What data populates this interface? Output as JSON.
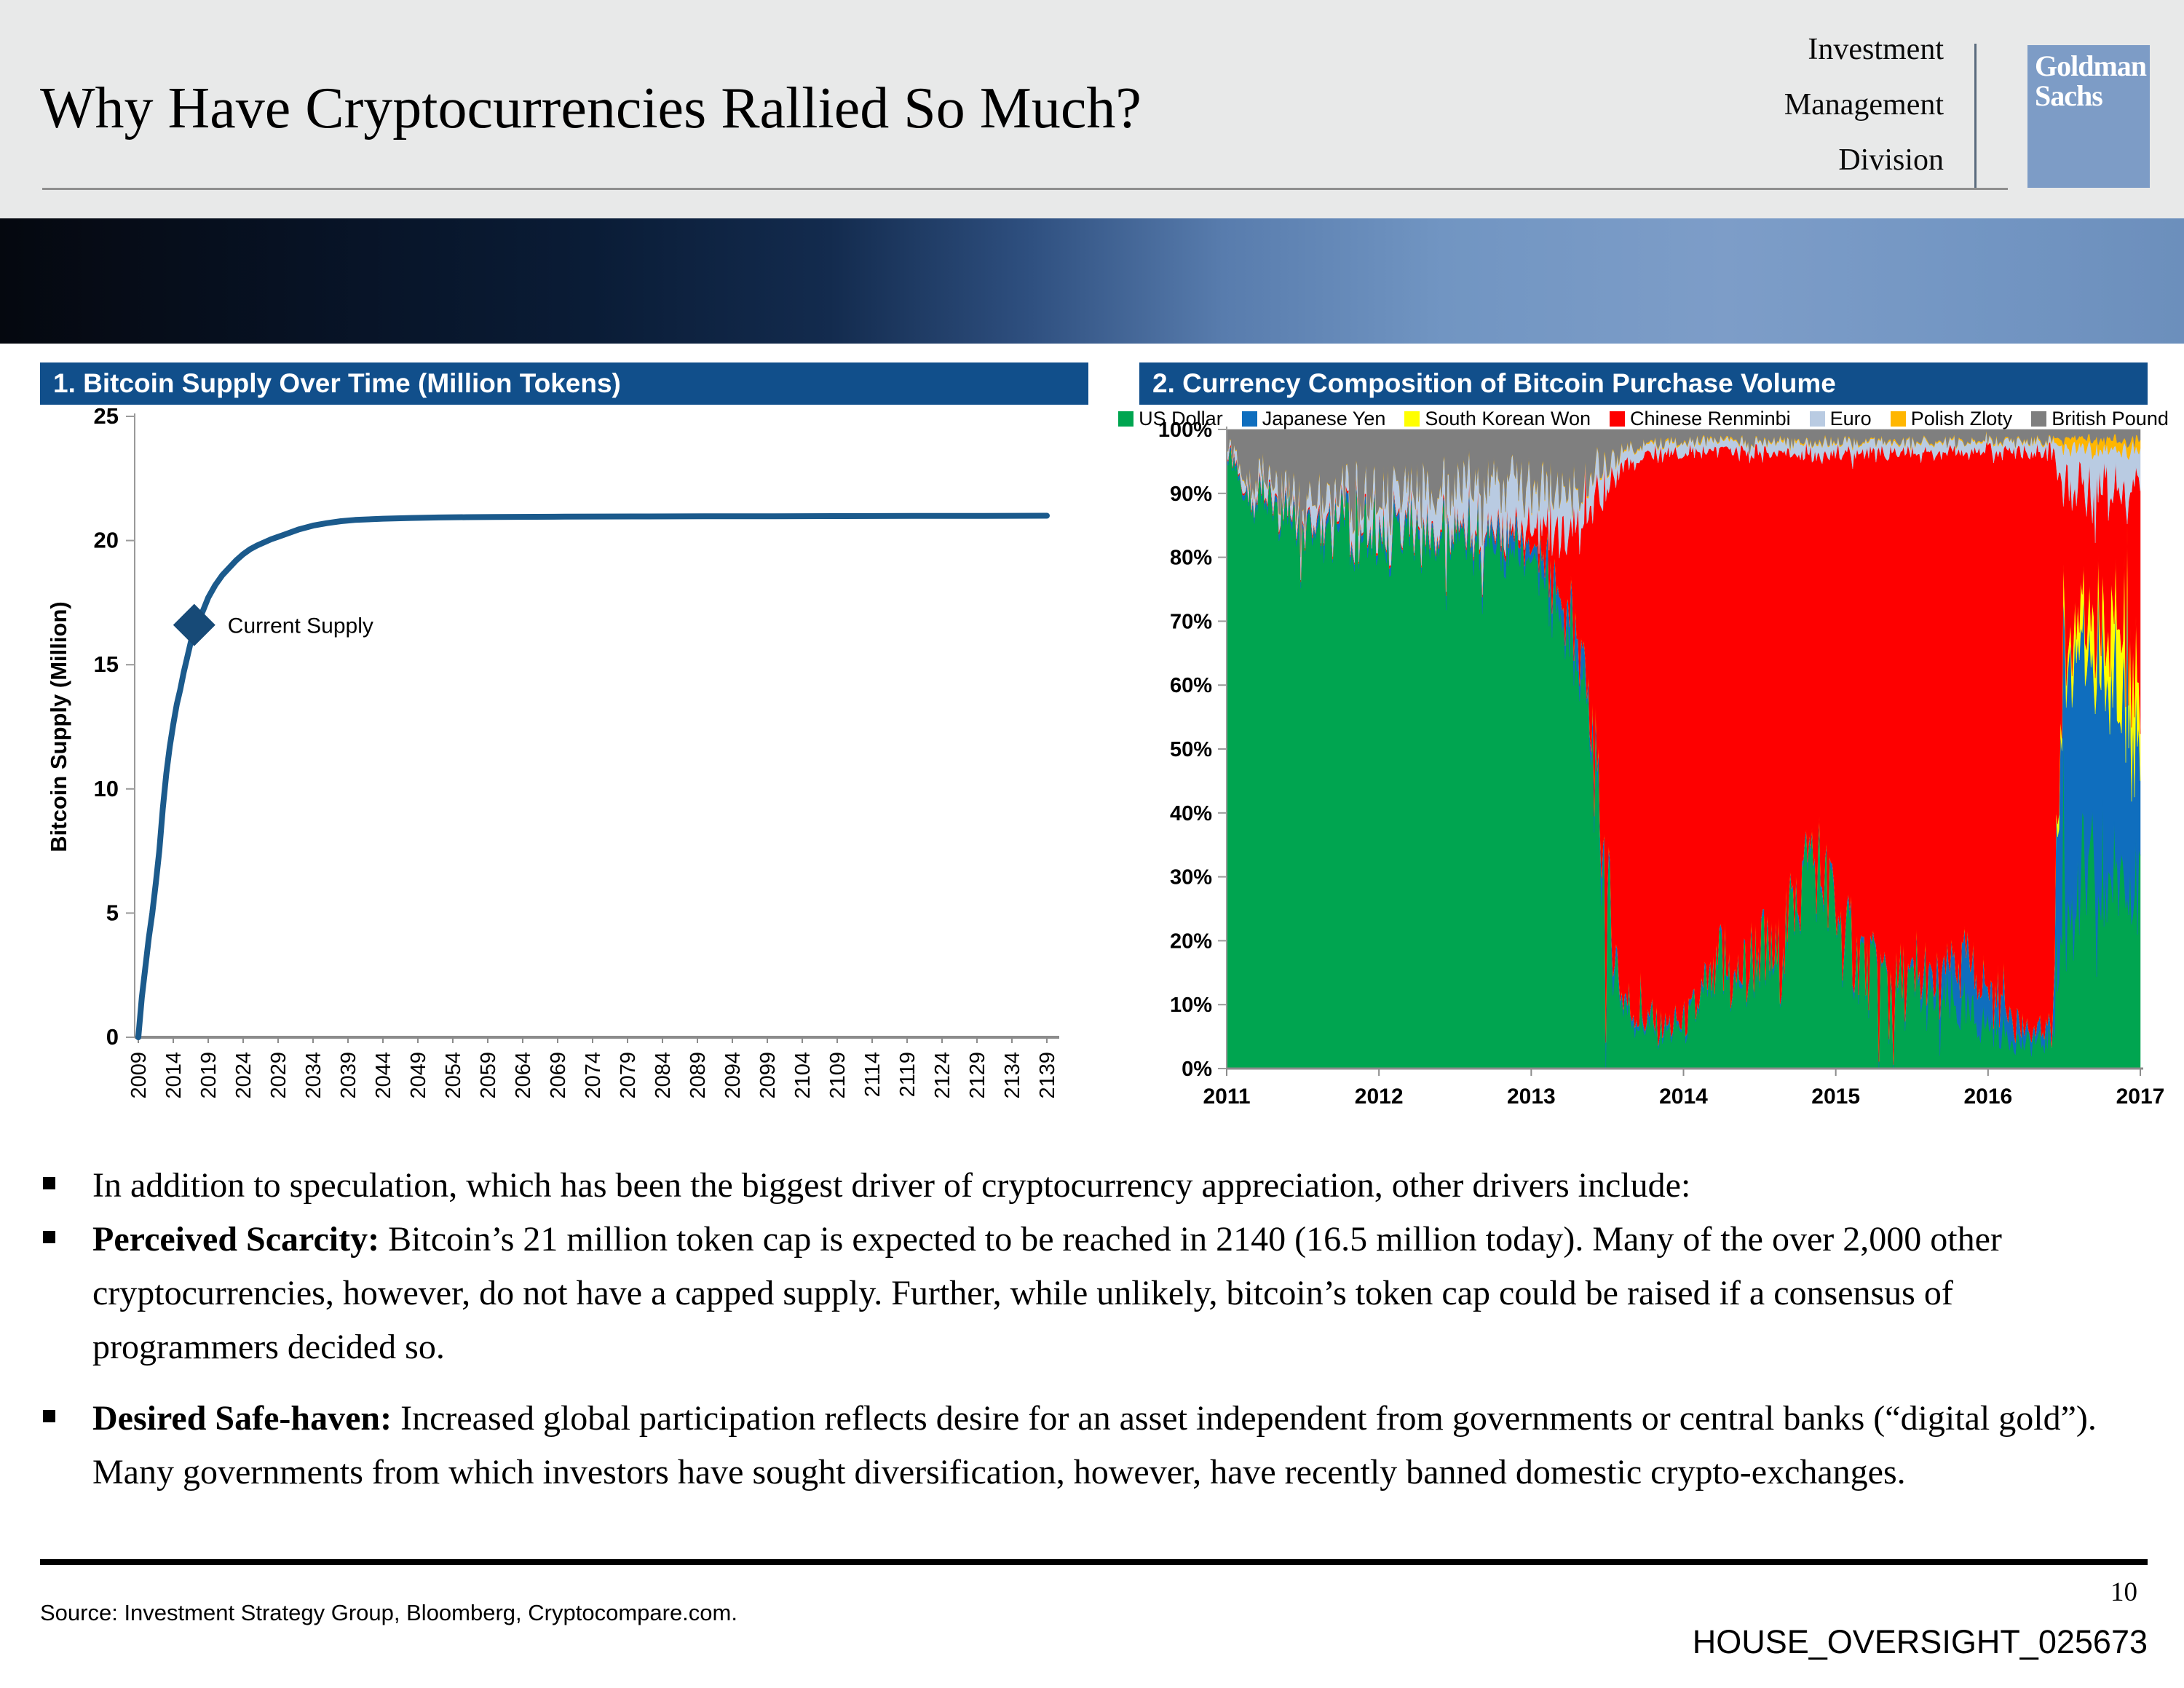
{
  "slide": {
    "title": "Why Have Cryptocurrencies Rallied So Much?",
    "division_lines": [
      "Investment",
      "Management",
      "Division"
    ],
    "logo_line1": "Goldman",
    "logo_line2": "Sachs",
    "page_number": "10",
    "doc_id": "HOUSE_OVERSIGHT_025673",
    "source": "Source: Investment Strategy Group, Bloomberg, Cryptocompare.com."
  },
  "bullets": [
    {
      "lead": "",
      "text": "In addition to speculation, which has been the biggest driver of cryptocurrency appreciation, other drivers include:"
    },
    {
      "lead": "Perceived Scarcity:",
      "text": " Bitcoin’s 21 million token cap is expected to be reached in 2140 (16.5 million today). Many of the over 2,000 other cryptocurrencies, however, do not have a capped supply. Further, while unlikely, bitcoin’s token cap could be raised if a consensus of programmers decided so."
    },
    {
      "lead": "Desired Safe-haven:",
      "text": " Increased global participation reflects desire for an asset independent from governments or central banks (“digital gold”). Many governments from which investors have sought diversification, however, have recently banned domestic crypto-exchanges."
    }
  ],
  "chart_data": [
    {
      "type": "line",
      "title": "1. Bitcoin Supply Over Time (Million Tokens)",
      "ylabel": "Bitcoin Supply (Million)",
      "xlabel": "",
      "ylim": [
        0,
        25
      ],
      "yticks": [
        0,
        5,
        10,
        15,
        20,
        25
      ],
      "xticks": [
        2009,
        2014,
        2019,
        2024,
        2029,
        2034,
        2039,
        2044,
        2049,
        2054,
        2059,
        2064,
        2069,
        2074,
        2079,
        2084,
        2089,
        2094,
        2099,
        2104,
        2109,
        2114,
        2119,
        2124,
        2129,
        2134,
        2139
      ],
      "line_color": "#1b5a8c",
      "marker_color": "#174a77",
      "grid": false,
      "series": [
        {
          "name": "Bitcoin Supply",
          "x": [
            2009,
            2009.5,
            2010,
            2010.5,
            2011,
            2011.5,
            2012,
            2012.5,
            2013,
            2013.5,
            2014,
            2014.5,
            2015,
            2015.5,
            2016,
            2016.5,
            2017,
            2017.5,
            2018,
            2019,
            2020,
            2021,
            2022,
            2023,
            2024,
            2025,
            2026,
            2028,
            2030,
            2032,
            2034,
            2036,
            2038,
            2040,
            2044,
            2048,
            2052,
            2056,
            2060,
            2070,
            2080,
            2090,
            2100,
            2110,
            2120,
            2130,
            2139
          ],
          "y": [
            0.0,
            1.6,
            2.8,
            4.0,
            5.0,
            6.2,
            7.5,
            9.2,
            10.6,
            11.7,
            12.6,
            13.4,
            14.0,
            14.7,
            15.3,
            15.9,
            16.4,
            16.7,
            17.0,
            17.7,
            18.2,
            18.6,
            18.9,
            19.2,
            19.45,
            19.65,
            19.8,
            20.05,
            20.25,
            20.45,
            20.6,
            20.7,
            20.78,
            20.83,
            20.88,
            20.91,
            20.93,
            20.94,
            20.95,
            20.96,
            20.97,
            20.975,
            20.98,
            20.985,
            20.99,
            20.995,
            21.0
          ]
        }
      ],
      "annotation": {
        "label": "Current Supply",
        "x": 2017,
        "y": 16.6
      }
    },
    {
      "type": "area",
      "title": "2. Currency Composition of Bitcoin Purchase Volume",
      "xlabel": "",
      "ylabel": "",
      "ylim": [
        0,
        100
      ],
      "yticks": [
        0,
        10,
        20,
        30,
        40,
        50,
        60,
        70,
        80,
        90,
        100
      ],
      "ytick_suffix": "%",
      "xticks": [
        2011,
        2012,
        2013,
        2014,
        2015,
        2016,
        2017
      ],
      "x_start_year": 2011,
      "x_step_months": 1,
      "legend_position": "top",
      "grid": false,
      "series": [
        {
          "name": "US Dollar",
          "color": "#00a550",
          "values": [
            96,
            92,
            89,
            91,
            86,
            88,
            84,
            86,
            84,
            86,
            83,
            85,
            84,
            82,
            85,
            83,
            81,
            84,
            82,
            84,
            81,
            83,
            80,
            82,
            78,
            76,
            74,
            69,
            58,
            46,
            24,
            12,
            8,
            7,
            6,
            6,
            7,
            9,
            12,
            16,
            13,
            15,
            19,
            16,
            22,
            28,
            35,
            30,
            25,
            20,
            17,
            15,
            14,
            13,
            12,
            11,
            10,
            10,
            9,
            8,
            7,
            6,
            5,
            4,
            4,
            5,
            25,
            28,
            30,
            28,
            30,
            32,
            28
          ]
        },
        {
          "name": "Japanese Yen",
          "color": "#0f6ebe",
          "values": [
            0.5,
            0.7,
            0.8,
            0.8,
            1,
            1,
            1,
            1,
            1.2,
            1,
            1.2,
            1,
            1,
            1.2,
            1,
            1.2,
            1.5,
            1.2,
            1.5,
            1.5,
            2,
            2,
            2.5,
            2,
            2.5,
            3,
            3,
            3.5,
            4,
            3.5,
            2.5,
            1.5,
            1,
            0.8,
            0.8,
            0.8,
            0.8,
            0.8,
            0.8,
            0.8,
            0.8,
            0.8,
            0.8,
            0.8,
            0.8,
            0.8,
            0.8,
            0.8,
            0.8,
            0.8,
            0.8,
            0.8,
            0.8,
            0.8,
            1,
            2,
            4,
            6,
            8,
            6,
            5,
            6,
            4,
            2,
            1.5,
            2,
            35,
            38,
            35,
            33,
            30,
            28,
            20
          ]
        },
        {
          "name": "South Korean Won",
          "color": "#ffff00",
          "values": [
            0,
            0,
            0,
            0,
            0,
            0,
            0,
            0,
            0,
            0,
            0,
            0,
            0,
            0,
            0,
            0,
            0,
            0,
            0,
            0,
            0,
            0,
            0,
            0,
            0,
            0,
            0,
            0,
            0,
            0,
            0,
            0,
            0,
            0,
            0,
            0,
            0,
            0,
            0,
            0,
            0,
            0,
            0,
            0,
            0,
            0,
            0,
            0,
            0,
            0,
            0,
            0,
            0,
            0,
            0,
            0,
            0,
            0,
            0,
            0,
            0,
            0,
            0,
            0,
            0,
            0,
            3,
            5,
            6,
            8,
            10,
            9,
            8
          ]
        },
        {
          "name": "Chinese Renminbi",
          "color": "#fe0000",
          "values": [
            0.2,
            0.2,
            0.3,
            0.3,
            0.3,
            0.3,
            0.3,
            0.3,
            0.3,
            0.3,
            0.3,
            0.3,
            0.3,
            0.3,
            0.3,
            0.3,
            0.3,
            0.3,
            0.4,
            0.4,
            0.5,
            0.5,
            0.8,
            1,
            3,
            5,
            8,
            13,
            25,
            40,
            65,
            80,
            86,
            88,
            89.5,
            89.7,
            88.5,
            86.5,
            83.5,
            79.5,
            82.5,
            80.5,
            76.5,
            79.5,
            73.5,
            67.5,
            60.5,
            65.5,
            70.5,
            75.5,
            78.5,
            80.5,
            81.5,
            82.5,
            83.3,
            83.3,
            82.3,
            80.3,
            79.3,
            82.4,
            84.5,
            84.4,
            87.5,
            90.5,
            91,
            89.5,
            28,
            20,
            20,
            22,
            21,
            22,
            35
          ]
        },
        {
          "name": "Euro",
          "color": "#b9cbe2",
          "values": [
            1,
            1.5,
            2,
            2,
            2.5,
            2.5,
            3,
            3,
            3.5,
            3.5,
            4,
            4,
            5,
            5,
            5.5,
            6,
            6,
            6,
            6.5,
            6.5,
            7,
            7,
            7.5,
            7,
            6.5,
            6.5,
            6,
            5.5,
            5,
            4,
            3,
            2.5,
            2,
            1.8,
            1.5,
            1.5,
            1.7,
            1.7,
            1.7,
            1.7,
            1.7,
            1.7,
            1.7,
            1.7,
            1.7,
            1.7,
            1.7,
            1.7,
            1.7,
            1.7,
            1.7,
            1.7,
            1.7,
            1.7,
            1.7,
            1.7,
            1.7,
            1.7,
            1.7,
            1.6,
            1.6,
            1.6,
            1.6,
            1.6,
            1.6,
            1.6,
            6,
            6,
            6,
            6,
            6,
            6,
            6
          ]
        },
        {
          "name": "Polish Zloty",
          "color": "#ffb600",
          "values": [
            0.1,
            0.1,
            0.1,
            0.1,
            0.1,
            0.1,
            0.1,
            0.1,
            0.1,
            0.1,
            0.1,
            0.1,
            0.1,
            0.1,
            0.1,
            0.1,
            0.1,
            0.1,
            0.1,
            0.1,
            0.1,
            0.1,
            0.1,
            0.1,
            0.2,
            0.2,
            0.2,
            0.2,
            0.2,
            0.2,
            0.2,
            0.2,
            0.2,
            0.2,
            0.2,
            0.2,
            0.2,
            0.2,
            0.2,
            0.2,
            0.2,
            0.2,
            0.2,
            0.2,
            0.2,
            0.2,
            0.2,
            0.2,
            0.2,
            0.2,
            0.2,
            0.2,
            0.2,
            0.2,
            0.2,
            0.2,
            0.2,
            0.2,
            0.2,
            0.2,
            0.2,
            0.2,
            0.2,
            0.2,
            0.2,
            0.2,
            1.5,
            1.5,
            1.5,
            1.5,
            1.5,
            1.5,
            1.5
          ]
        },
        {
          "name": "British Pound",
          "color": "#7f7f7f",
          "values": [
            2.2,
            5.5,
            7.8,
            5.8,
            10.1,
            8.1,
            11.6,
            9.6,
            10.9,
            9.1,
            11.4,
            9.6,
            9.6,
            11.4,
            8.1,
            9.4,
            11.1,
            8.4,
            9.5,
            7.5,
            9.4,
            7.4,
            9.1,
            7.9,
            9.8,
            9.3,
            8.8,
            8.8,
            7.8,
            6.3,
            5.3,
            3.8,
            2.8,
            2.2,
            2.0,
            1.8,
            1.8,
            1.8,
            1.8,
            1.8,
            1.8,
            1.8,
            1.8,
            1.8,
            1.8,
            1.8,
            1.8,
            1.8,
            1.8,
            1.8,
            1.8,
            1.8,
            1.8,
            1.8,
            1.8,
            1.8,
            1.8,
            1.8,
            1.8,
            1.8,
            1.7,
            1.8,
            1.7,
            1.7,
            1.7,
            1.7,
            1.5,
            1.5,
            1.5,
            1.5,
            1.5,
            1.5,
            1.5
          ]
        }
      ]
    }
  ]
}
